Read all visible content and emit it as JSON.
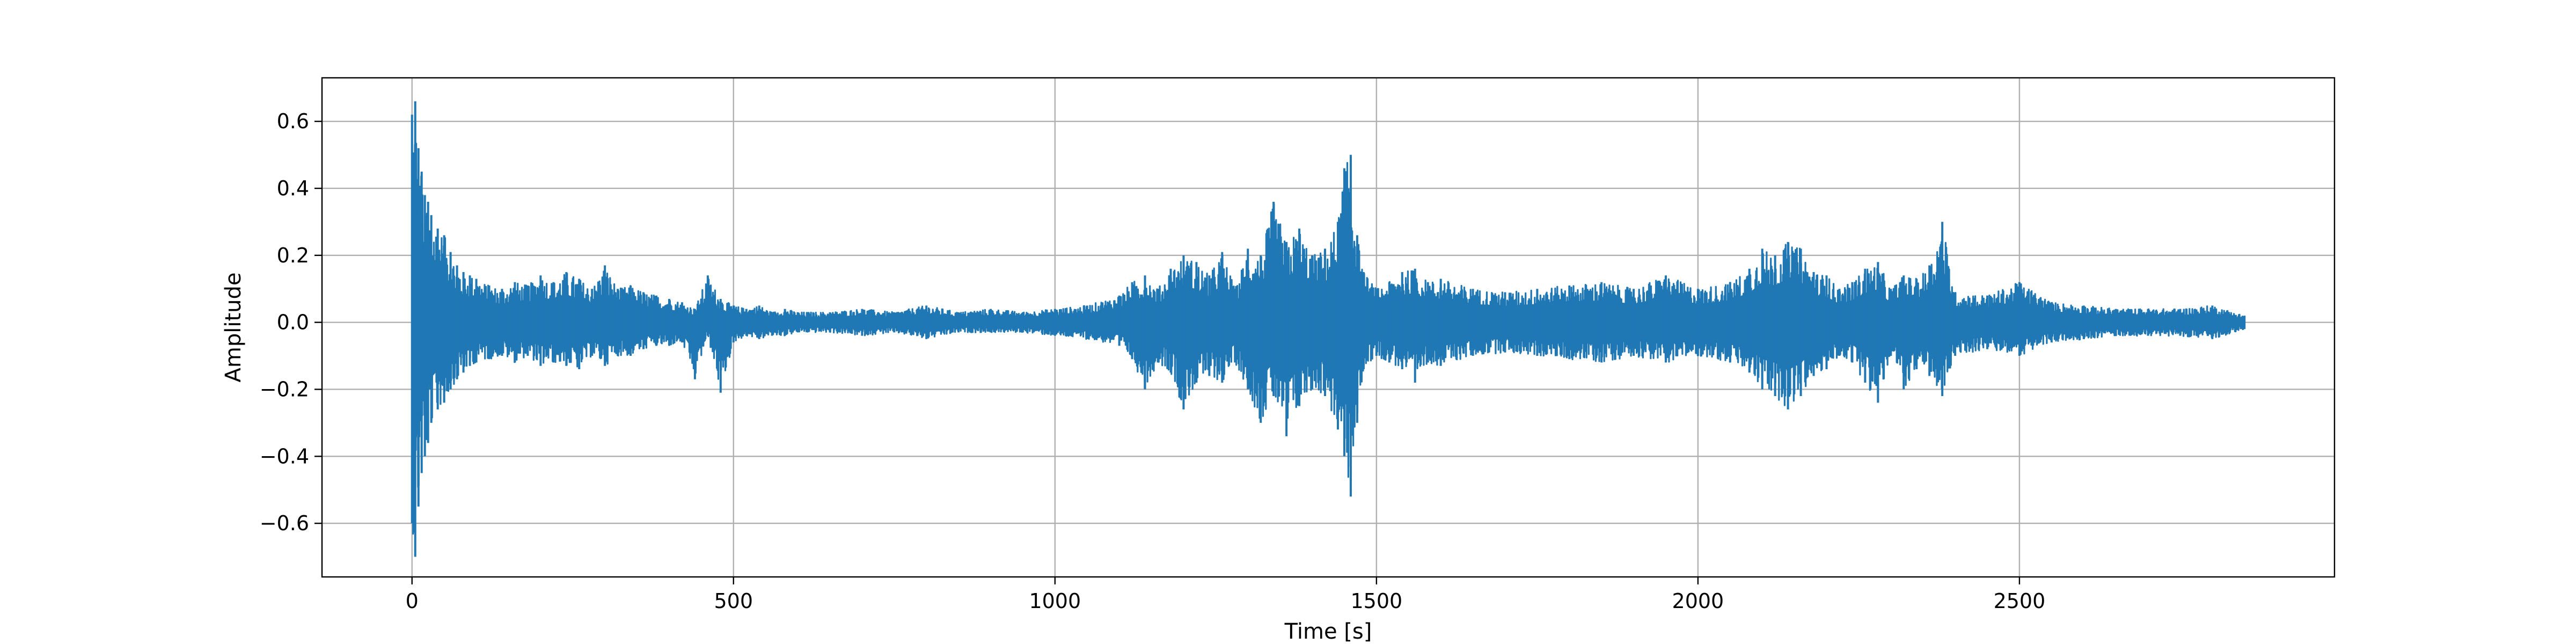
{
  "chart_data": {
    "type": "line",
    "title": "",
    "xlabel": "Time [s]",
    "ylabel": "Amplitude",
    "xlim": [
      -140,
      2990
    ],
    "ylim": [
      -0.76,
      0.73
    ],
    "xticks": [
      0,
      500,
      1000,
      1500,
      2000,
      2500
    ],
    "xtick_labels": [
      "0",
      "500",
      "1000",
      "1500",
      "2000",
      "2500"
    ],
    "yticks": [
      -0.6,
      -0.4,
      -0.2,
      0.0,
      0.2,
      0.4,
      0.6
    ],
    "ytick_labels": [
      "−0.6",
      "−0.4",
      "−0.2",
      "0.0",
      "0.2",
      "0.4",
      "0.6"
    ],
    "grid": true,
    "color": "#1f77b4",
    "series": [
      {
        "x": [
          0,
          5,
          10,
          15,
          20,
          25,
          30,
          40,
          50,
          60,
          70,
          80,
          90,
          100,
          120,
          140,
          160,
          180,
          200,
          220,
          240,
          260,
          280,
          300,
          320,
          340,
          360,
          380,
          400,
          420,
          440,
          460,
          480,
          500,
          520,
          540,
          560,
          580,
          600,
          650,
          700,
          750,
          800,
          850,
          900,
          950,
          1000,
          1050,
          1100,
          1120,
          1140,
          1160,
          1180,
          1200,
          1220,
          1240,
          1260,
          1280,
          1300,
          1320,
          1340,
          1360,
          1380,
          1400,
          1420,
          1440,
          1450,
          1460,
          1470,
          1480,
          1500,
          1520,
          1540,
          1560,
          1580,
          1600,
          1650,
          1700,
          1750,
          1800,
          1850,
          1900,
          1950,
          2000,
          2050,
          2080,
          2100,
          2120,
          2140,
          2160,
          2180,
          2200,
          2220,
          2240,
          2260,
          2280,
          2300,
          2320,
          2340,
          2360,
          2380,
          2400,
          2450,
          2500,
          2550,
          2600,
          2650,
          2700,
          2750,
          2800,
          2850
        ],
        "upper": [
          0.62,
          0.66,
          0.52,
          0.45,
          0.38,
          0.36,
          0.32,
          0.28,
          0.26,
          0.21,
          0.17,
          0.15,
          0.14,
          0.13,
          0.11,
          0.1,
          0.12,
          0.11,
          0.14,
          0.12,
          0.15,
          0.13,
          0.1,
          0.17,
          0.1,
          0.11,
          0.09,
          0.08,
          0.07,
          0.06,
          0.04,
          0.14,
          0.07,
          0.05,
          0.04,
          0.05,
          0.03,
          0.04,
          0.03,
          0.03,
          0.04,
          0.03,
          0.05,
          0.03,
          0.04,
          0.03,
          0.04,
          0.05,
          0.08,
          0.12,
          0.14,
          0.1,
          0.16,
          0.2,
          0.18,
          0.14,
          0.21,
          0.1,
          0.22,
          0.2,
          0.36,
          0.24,
          0.28,
          0.2,
          0.22,
          0.3,
          0.46,
          0.5,
          0.26,
          0.15,
          0.1,
          0.12,
          0.15,
          0.16,
          0.12,
          0.13,
          0.1,
          0.09,
          0.1,
          0.11,
          0.12,
          0.1,
          0.14,
          0.1,
          0.12,
          0.16,
          0.22,
          0.2,
          0.24,
          0.22,
          0.15,
          0.14,
          0.1,
          0.12,
          0.16,
          0.18,
          0.1,
          0.14,
          0.13,
          0.17,
          0.3,
          0.09,
          0.08,
          0.12,
          0.06,
          0.05,
          0.04,
          0.04,
          0.04,
          0.05,
          0.02
        ],
        "lower": [
          -0.6,
          -0.7,
          -0.55,
          -0.45,
          -0.4,
          -0.36,
          -0.3,
          -0.26,
          -0.24,
          -0.2,
          -0.17,
          -0.15,
          -0.13,
          -0.12,
          -0.11,
          -0.1,
          -0.12,
          -0.1,
          -0.13,
          -0.12,
          -0.13,
          -0.14,
          -0.1,
          -0.13,
          -0.1,
          -0.1,
          -0.08,
          -0.07,
          -0.07,
          -0.06,
          -0.17,
          -0.04,
          -0.21,
          -0.06,
          -0.04,
          -0.05,
          -0.04,
          -0.04,
          -0.03,
          -0.03,
          -0.04,
          -0.03,
          -0.05,
          -0.03,
          -0.03,
          -0.03,
          -0.04,
          -0.05,
          -0.07,
          -0.11,
          -0.2,
          -0.12,
          -0.15,
          -0.26,
          -0.18,
          -0.16,
          -0.18,
          -0.12,
          -0.2,
          -0.3,
          -0.22,
          -0.34,
          -0.25,
          -0.2,
          -0.22,
          -0.32,
          -0.4,
          -0.52,
          -0.3,
          -0.14,
          -0.1,
          -0.12,
          -0.14,
          -0.18,
          -0.12,
          -0.13,
          -0.1,
          -0.09,
          -0.1,
          -0.11,
          -0.12,
          -0.1,
          -0.12,
          -0.1,
          -0.12,
          -0.15,
          -0.2,
          -0.22,
          -0.26,
          -0.22,
          -0.16,
          -0.14,
          -0.1,
          -0.12,
          -0.18,
          -0.24,
          -0.1,
          -0.2,
          -0.14,
          -0.16,
          -0.22,
          -0.1,
          -0.08,
          -0.1,
          -0.06,
          -0.05,
          -0.04,
          -0.04,
          -0.04,
          -0.05,
          -0.02
        ]
      }
    ]
  }
}
